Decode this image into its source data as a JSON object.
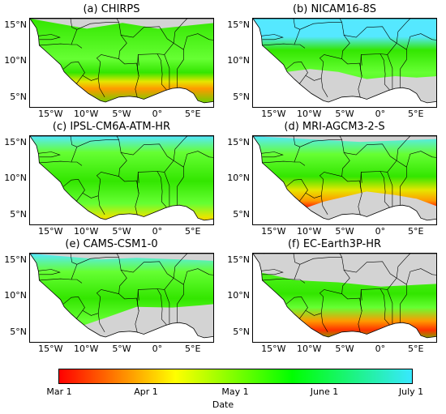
{
  "panels": [
    {
      "title": "(a) CHIRPS",
      "variant": "chirps"
    },
    {
      "title": "(b) NICAM16-8S",
      "variant": "nicam"
    },
    {
      "title": "(c) IPSL-CM6A-ATM-HR",
      "variant": "ipsl"
    },
    {
      "title": "(d) MRI-AGCM3-2-S",
      "variant": "mri"
    },
    {
      "title": "(e) CAMS-CSM1-0",
      "variant": "cams"
    },
    {
      "title": "(f) EC-Earth3P-HR",
      "variant": "ecearth"
    }
  ],
  "axes": {
    "y_ticks": [
      "15°N",
      "10°N",
      "5°N"
    ],
    "x_ticks": [
      "15°W",
      "10°W",
      "5°W",
      "0°",
      "5°E"
    ]
  },
  "colorbar": {
    "ticks": [
      "Mar 1",
      "Apr 1",
      "May 1",
      "June 1",
      "July 1"
    ],
    "label": "Date",
    "colors": [
      "#ff0000",
      "#ffff00",
      "#00ff00",
      "#38e8ff"
    ]
  },
  "colors": {
    "land_masked": "#d3d3d3",
    "ocean": "#ffffff",
    "green": "#33e600",
    "bright_green": "#66ff33",
    "yellow": "#e6e600",
    "orange": "#ff9900",
    "red": "#ff3300",
    "cyan": "#55e8ff",
    "border": "#000000",
    "contour": "#000066"
  }
}
